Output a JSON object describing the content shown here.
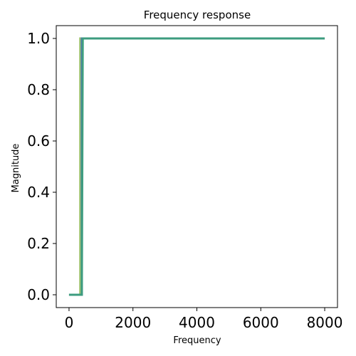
{
  "chart_data": {
    "type": "line",
    "title": "Frequency response",
    "xlabel": "Frequency",
    "ylabel": "Magnitude",
    "xlim": [
      -400,
      8400
    ],
    "ylim": [
      -0.05,
      1.05
    ],
    "x_ticks": [
      0,
      2000,
      4000,
      6000,
      8000
    ],
    "x_tick_labels": [
      "0",
      "2000",
      "4000",
      "6000",
      "8000"
    ],
    "y_ticks": [
      0.0,
      0.2,
      0.4,
      0.6,
      0.8,
      1.0
    ],
    "y_tick_labels": [
      "0.0",
      "0.2",
      "0.4",
      "0.6",
      "0.8",
      "1.0"
    ],
    "grid": false,
    "series": [
      {
        "color": "#9cc26b",
        "x": [
          0,
          350,
          350,
          8000
        ],
        "y": [
          0.0,
          0.0,
          1.0,
          1.0
        ]
      },
      {
        "color": "#4c72b0",
        "x": [
          0,
          400,
          400,
          8000
        ],
        "y": [
          0.0,
          0.0,
          1.0,
          1.0
        ]
      },
      {
        "color": "#3c9e7c",
        "x": [
          0,
          400,
          430,
          8000
        ],
        "y": [
          0.0,
          0.0,
          1.0,
          1.0
        ]
      }
    ]
  }
}
